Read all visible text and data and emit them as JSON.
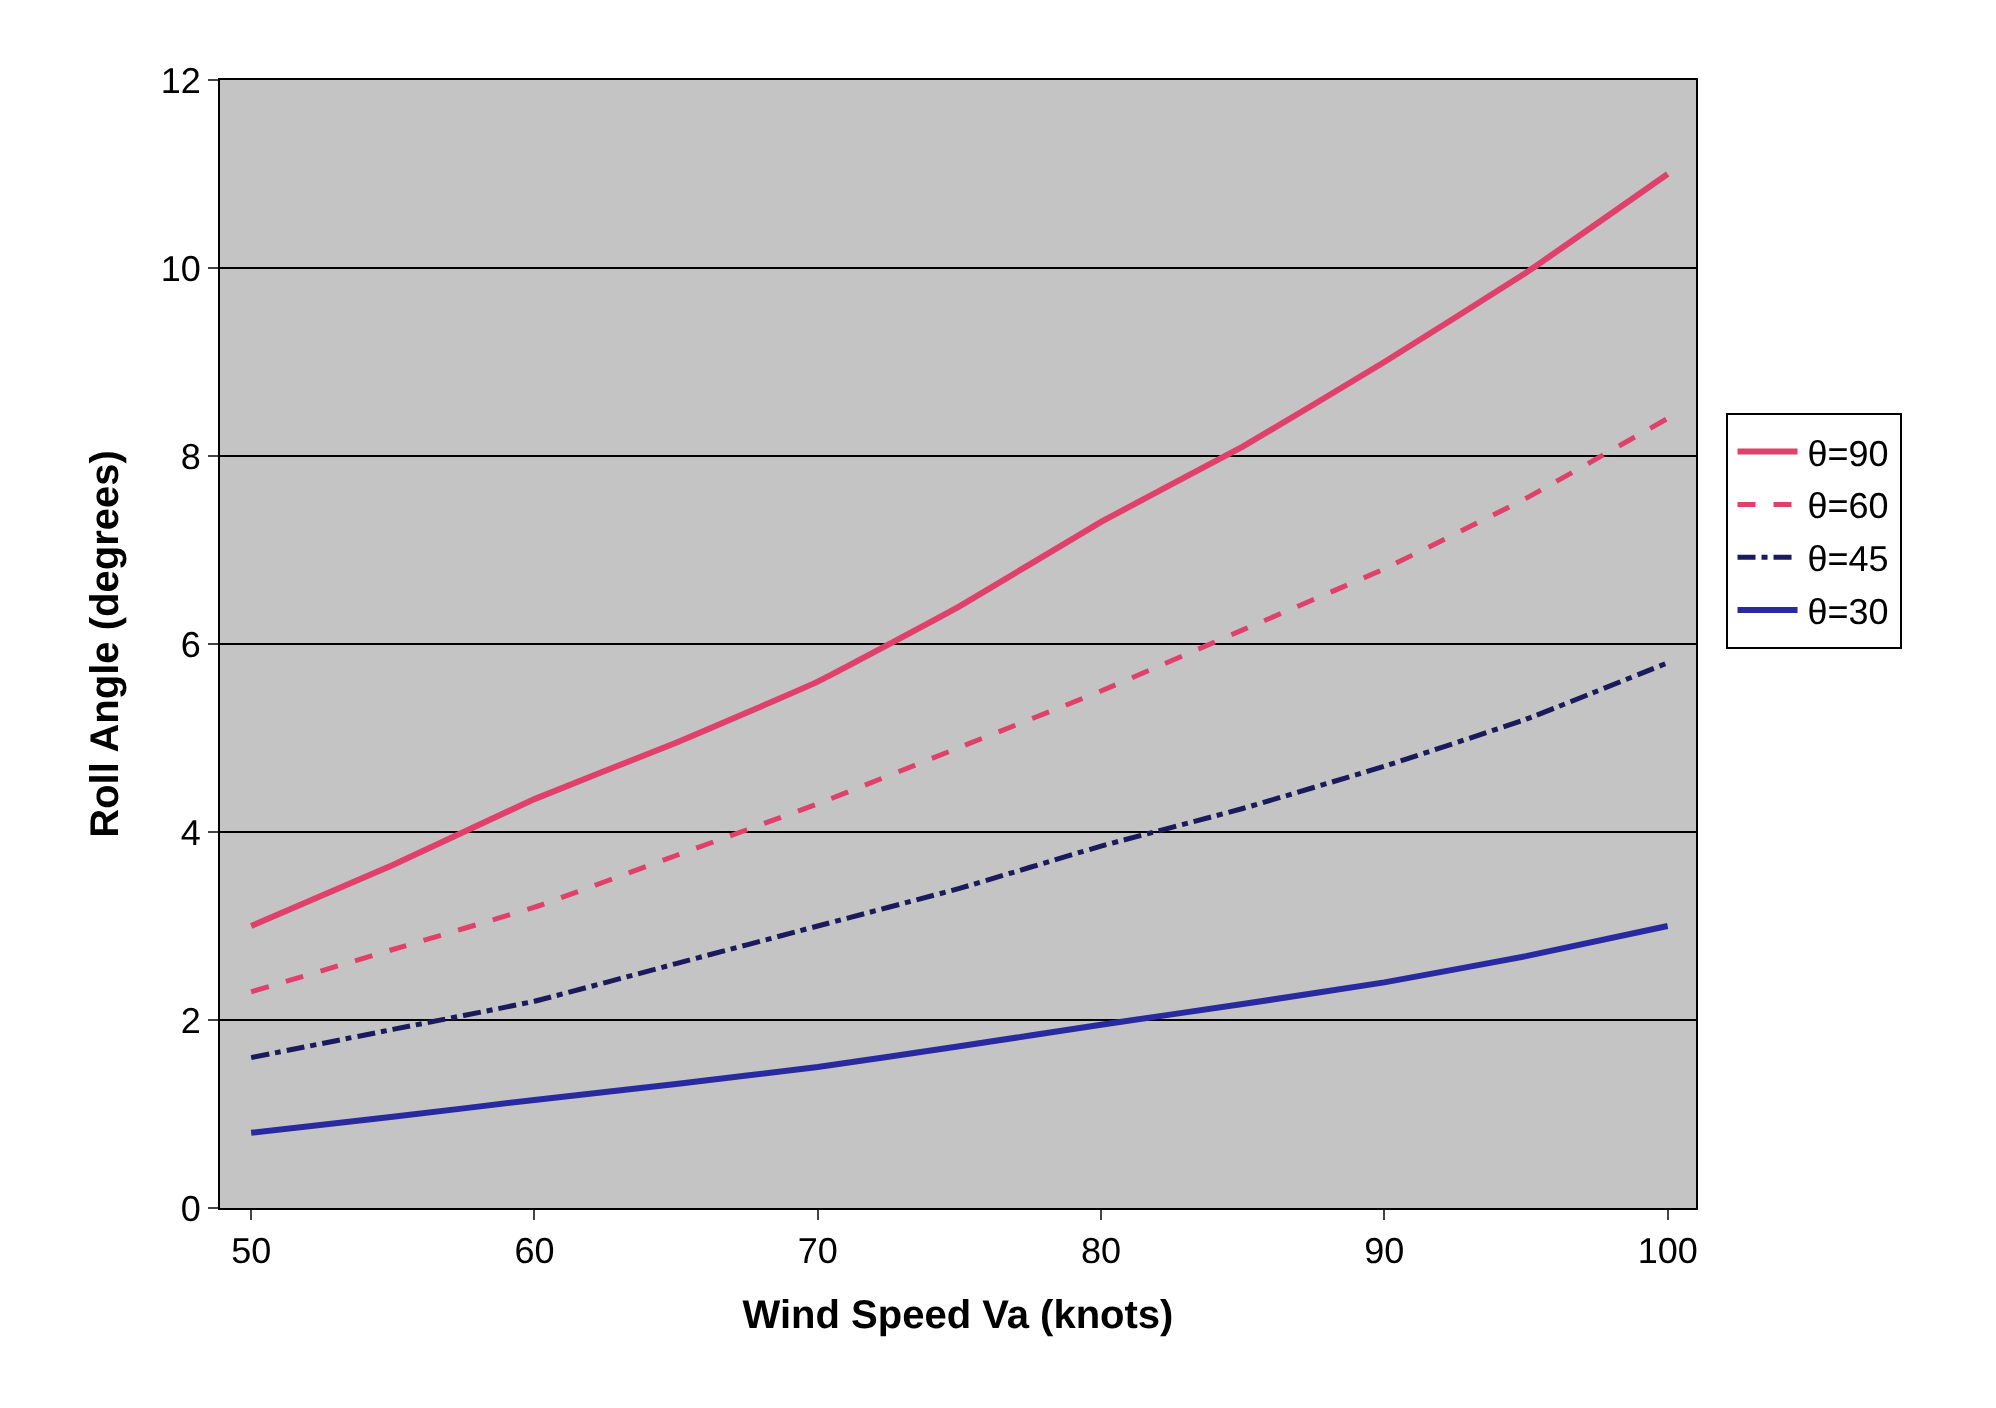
{
  "chart_data": {
    "type": "line",
    "xlabel": "Wind Speed Va (knots)",
    "ylabel": "Roll Angle (degrees)",
    "x": [
      50,
      55,
      60,
      65,
      70,
      75,
      80,
      85,
      90,
      95,
      100
    ],
    "series": [
      {
        "name": "θ=90",
        "color": "#e0406a",
        "line_style": "solid",
        "values": [
          3.0,
          3.65,
          4.35,
          4.95,
          5.6,
          6.4,
          7.3,
          8.1,
          9.0,
          9.95,
          11.0
        ]
      },
      {
        "name": "θ=60",
        "color": "#e0406a",
        "line_style": "dashed",
        "values": [
          2.3,
          2.75,
          3.2,
          3.75,
          4.3,
          4.9,
          5.5,
          6.15,
          6.8,
          7.55,
          8.4
        ]
      },
      {
        "name": "θ=45",
        "color": "#1a1a5c",
        "line_style": "dashdot",
        "values": [
          1.6,
          1.9,
          2.2,
          2.6,
          3.0,
          3.4,
          3.85,
          4.25,
          4.7,
          5.2,
          5.8
        ]
      },
      {
        "name": "θ=30",
        "color": "#2a2aa0",
        "line_style": "solid",
        "values": [
          0.8,
          0.97,
          1.15,
          1.32,
          1.5,
          1.72,
          1.95,
          2.17,
          2.4,
          2.68,
          3.0
        ]
      }
    ],
    "xlim": [
      48.9,
      101
    ],
    "xticks": [
      50,
      60,
      70,
      80,
      90,
      100
    ],
    "ylim": [
      0,
      12
    ],
    "yticks": [
      0,
      2,
      4,
      6,
      8,
      10,
      12
    ],
    "grid": "y",
    "legend": "right",
    "marker": "none"
  }
}
